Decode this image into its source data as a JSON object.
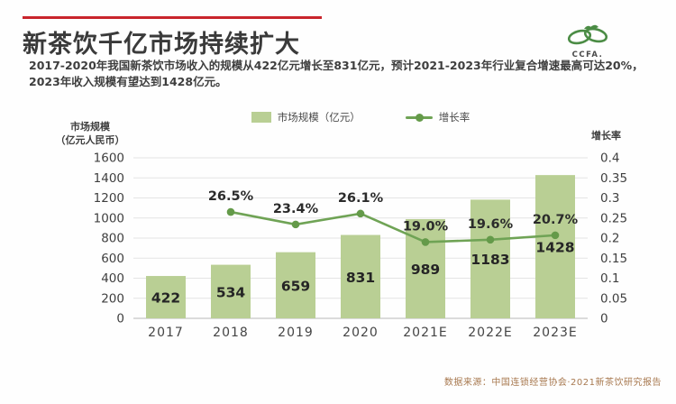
{
  "header": {
    "title": "新茶饮千亿市场持续扩大",
    "subtitle_line1": "2017-2020年我国新茶饮市场收入的规模从422亿元增长至831亿元，预计2021-2023年行业复合增速最高可达20%，",
    "subtitle_line2": "2023年收入规模有望达到1428亿元。",
    "accent_color": "#c9252c",
    "logo_text": "CCFA."
  },
  "legend": {
    "items": [
      {
        "label": "市场规模（亿元）",
        "type": "bar",
        "color": "#b9cf94"
      },
      {
        "label": "增长率",
        "type": "line",
        "color": "#6fa355"
      }
    ]
  },
  "chart_data": {
    "type": "bar",
    "categories": [
      "2017",
      "2018",
      "2019",
      "2020",
      "2021E",
      "2022E",
      "2023E"
    ],
    "series": [
      {
        "name": "市场规模（亿元）",
        "type": "bar",
        "axis": "left",
        "values": [
          422,
          534,
          659,
          831,
          989,
          1183,
          1428
        ],
        "color": "#b9cf94"
      },
      {
        "name": "增长率",
        "type": "line",
        "axis": "right",
        "values": [
          null,
          0.265,
          0.234,
          0.261,
          0.19,
          0.196,
          0.207
        ],
        "point_labels": [
          "",
          "26.5%",
          "23.4%",
          "26.1%",
          "19.0%",
          "19.6%",
          "20.7%"
        ],
        "color": "#6fa355"
      }
    ],
    "left_axis": {
      "title_line1": "市场规模",
      "title_line2": "（亿元人民币）",
      "min": 0,
      "max": 1600,
      "step": 200,
      "ticks": [
        "0",
        "200",
        "400",
        "600",
        "800",
        "1000",
        "1200",
        "1400",
        "1600"
      ]
    },
    "right_axis": {
      "title": "增长率",
      "min": 0,
      "max": 0.4,
      "step": 0.05,
      "ticks": [
        "0",
        "0.05",
        "0.1",
        "0.15",
        "0.2",
        "0.25",
        "0.3",
        "0.35",
        "0.4"
      ]
    },
    "grid": true,
    "legend_position": "top"
  },
  "footer": {
    "source": "数据来源：中国连锁经营协会·2021新茶饮研究报告"
  }
}
